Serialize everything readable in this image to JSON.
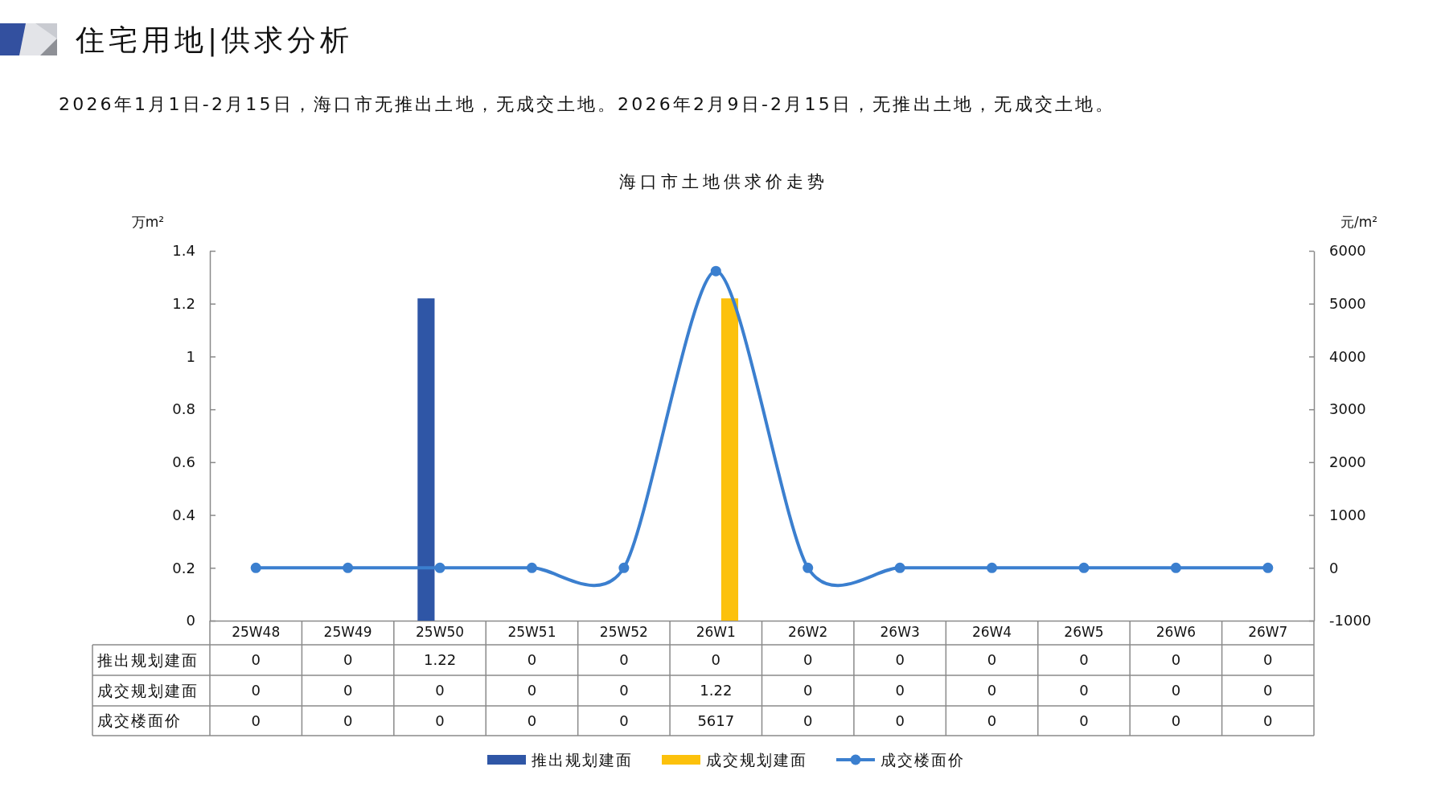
{
  "chart_data": {
    "type": "bar",
    "title": "海口市土地供求价走势",
    "ylabel": "万m²",
    "y2label": "元/m²",
    "annotations": [
      "住宅用地|供求分析",
      "2026年1月1日-2月15日，海口市无推出土地，无成交土地。2026年2月9日-2月15日，无推出土地，无成交土地。"
    ],
    "categories": [
      "25W48",
      "25W49",
      "25W50",
      "25W51",
      "25W52",
      "26W1",
      "26W2",
      "26W3",
      "26W4",
      "26W5",
      "26W6",
      "26W7"
    ],
    "series": [
      {
        "name": "推出规划建面",
        "color": "#2f56a6",
        "values": [
          0,
          0,
          1.22,
          0,
          0,
          0,
          0,
          0,
          0,
          0,
          0,
          0
        ]
      },
      {
        "name": "成交规划建面",
        "color": "#fcc10c",
        "values": [
          0,
          0,
          0,
          0,
          0,
          1.22,
          0,
          0,
          0,
          0,
          0,
          0
        ]
      },
      {
        "name": "成交楼面价",
        "type": "line",
        "axis": "y2",
        "color": "#3b7fcf",
        "values": [
          0,
          0,
          0,
          0,
          0,
          5617,
          0,
          0,
          0,
          0,
          0,
          0
        ]
      }
    ],
    "ylim": [
      0,
      1.4
    ],
    "yticks": [
      0,
      0.2,
      0.4,
      0.6,
      0.8,
      1,
      1.2,
      1.4
    ],
    "y2lim": [
      -1000,
      6000
    ],
    "y2ticks": [
      -1000,
      0,
      1000,
      2000,
      3000,
      4000,
      5000,
      6000
    ],
    "marker": "circle",
    "legend": "bottom",
    "data_labels": true
  }
}
